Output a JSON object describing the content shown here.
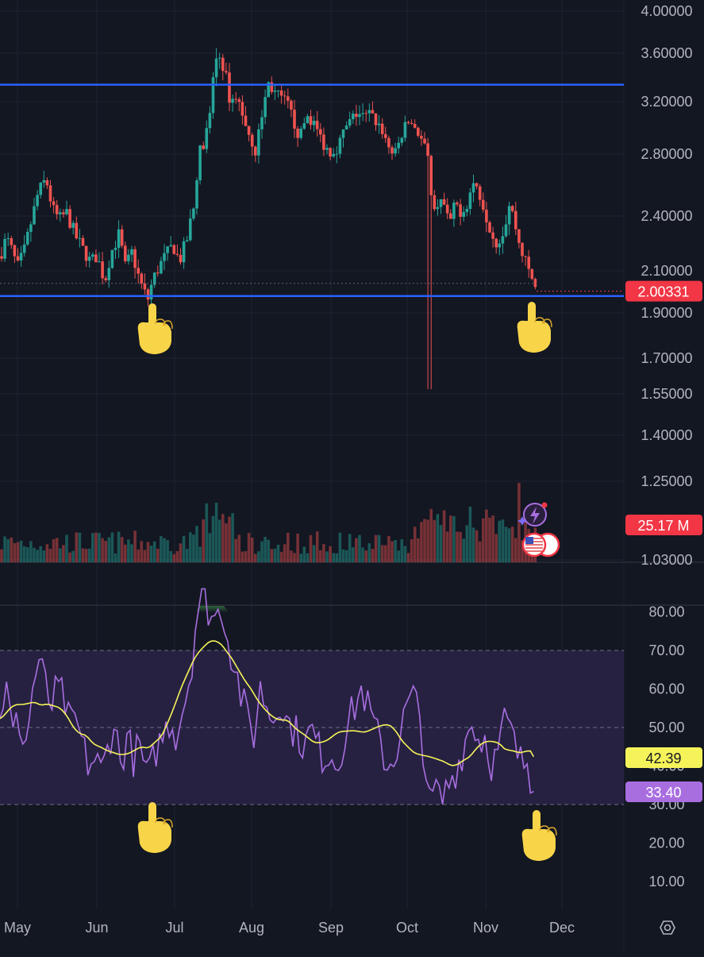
{
  "colors": {
    "background": "#131722",
    "grid": "#1f2330",
    "axis_text": "#b2b5be",
    "up": "#26a69a",
    "down": "#ef5350",
    "level_line": "#2962ff",
    "price_badge": "#f23645",
    "rsi_line": "#a86ee0",
    "rsi_ma": "#f5f35a",
    "rsi_band": "#2a2346",
    "rsi_ma_badge": "#f5f35a",
    "rsi_badge": "#a86ee0",
    "pointer": "#f8d448"
  },
  "price_axis": {
    "ticks": [
      "4.00000",
      "3.60000",
      "3.20000",
      "2.80000",
      "2.40000",
      "2.10000",
      "1.90000",
      "1.70000",
      "1.55000",
      "1.40000",
      "1.25000",
      "1.03000"
    ]
  },
  "time_axis": {
    "labels": [
      "May",
      "Jun",
      "Jul",
      "Aug",
      "Sep",
      "Oct",
      "Nov",
      "Dec"
    ]
  },
  "badges": {
    "last_price": "2.00331",
    "volume": "25.17 M",
    "rsi_ma": "42.39",
    "rsi": "33.40"
  },
  "rsi_axis": {
    "ticks": [
      "80.00",
      "70.00",
      "60.00",
      "50.00",
      "40.00",
      "30.00",
      "20.00",
      "10.00"
    ]
  },
  "icons": {
    "settings": "settings-hexagon-icon",
    "pointer": "pointing-hand-emoji-icon",
    "events": "lightning-event-icon",
    "flag": "us-flag-icon"
  },
  "chart_data": [
    {
      "type": "candlestick",
      "series": "price",
      "x_range": [
        "May",
        "Dec"
      ],
      "y_scale": "log",
      "ylim": [
        1.03,
        4.0
      ],
      "grid": true,
      "horizontal_levels": [
        3.34,
        1.98
      ],
      "last_price": 2.00331,
      "low_wick_min": 1.57,
      "high_max": 3.65
    },
    {
      "type": "bar",
      "series": "volume",
      "last_value": "25.17 M"
    },
    {
      "type": "line",
      "series": "RSI",
      "ylim": [
        0,
        85
      ],
      "band": [
        30,
        70
      ],
      "rsi_last": 33.4,
      "rsi_ma_last": 42.39
    }
  ]
}
